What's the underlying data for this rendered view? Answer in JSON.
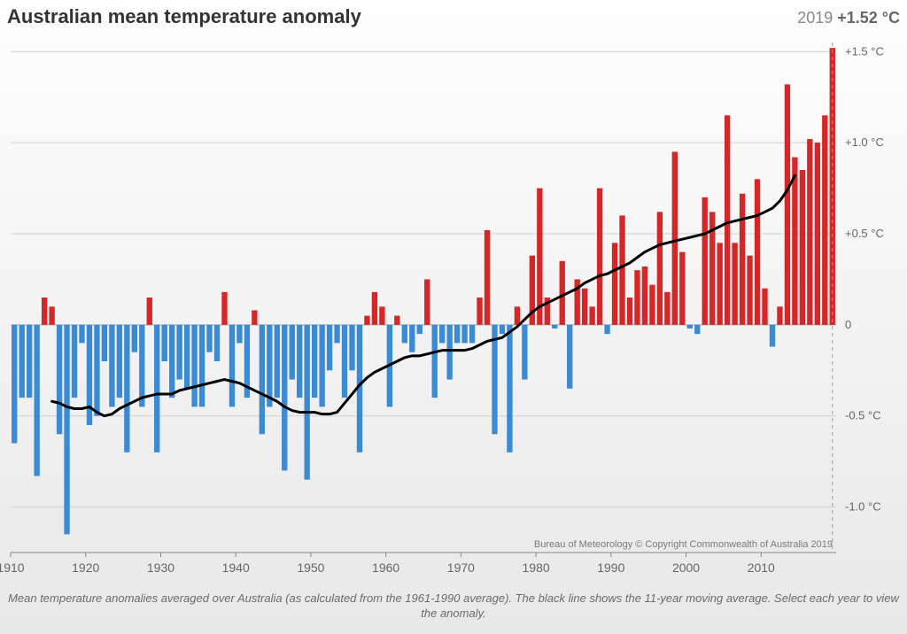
{
  "title": "Australian mean temperature anomaly",
  "readout": {
    "year": "2019",
    "value": "+1.52 °C"
  },
  "caption": "Mean temperature anomalies averaged over Australia (as calculated from the 1961-1990 average). The black line shows the 11-year moving average. Select each year to view the anomaly.",
  "credit": "Bureau of Meteorology © Copyright Commonwealth of Australia 2019",
  "chart": {
    "type": "bar+line",
    "x_start": 1910,
    "x_end": 2019,
    "xticks": [
      1910,
      1920,
      1930,
      1940,
      1950,
      1960,
      1970,
      1980,
      1990,
      2000,
      2010
    ],
    "ylim": [
      -1.25,
      1.55
    ],
    "yticks": [
      -1.0,
      -0.5,
      0,
      0.5,
      1.0,
      1.5
    ],
    "ytick_labels": [
      "-1.0 °C",
      "-0.5 °C",
      "0",
      "+0.5 °C",
      "+1.0 °C",
      "+1.5 °C"
    ],
    "xtick_fontsize": 14,
    "ytick_fontsize": 13,
    "title_fontsize": 22,
    "pos_color": "#d62728",
    "neg_color": "#3b8bd4",
    "line_color": "#000000",
    "line_width": 3,
    "grid_color": "#d0d0d0",
    "axis_color": "#888888",
    "background": "linear-gradient(#fefefe,#e8e8e8)",
    "bar_gap_ratio": 0.25,
    "values": [
      {
        "year": 1910,
        "v": -0.65
      },
      {
        "year": 1911,
        "v": -0.4
      },
      {
        "year": 1912,
        "v": -0.4
      },
      {
        "year": 1913,
        "v": -0.83
      },
      {
        "year": 1914,
        "v": 0.15
      },
      {
        "year": 1915,
        "v": 0.1
      },
      {
        "year": 1916,
        "v": -0.6
      },
      {
        "year": 1917,
        "v": -1.15
      },
      {
        "year": 1918,
        "v": -0.4
      },
      {
        "year": 1919,
        "v": -0.1
      },
      {
        "year": 1920,
        "v": -0.55
      },
      {
        "year": 1921,
        "v": -0.5
      },
      {
        "year": 1922,
        "v": -0.2
      },
      {
        "year": 1923,
        "v": -0.45
      },
      {
        "year": 1924,
        "v": -0.4
      },
      {
        "year": 1925,
        "v": -0.7
      },
      {
        "year": 1926,
        "v": -0.15
      },
      {
        "year": 1927,
        "v": -0.45
      },
      {
        "year": 1928,
        "v": 0.15
      },
      {
        "year": 1929,
        "v": -0.7
      },
      {
        "year": 1930,
        "v": -0.2
      },
      {
        "year": 1931,
        "v": -0.4
      },
      {
        "year": 1932,
        "v": -0.3
      },
      {
        "year": 1933,
        "v": -0.35
      },
      {
        "year": 1934,
        "v": -0.45
      },
      {
        "year": 1935,
        "v": -0.45
      },
      {
        "year": 1936,
        "v": -0.15
      },
      {
        "year": 1937,
        "v": -0.2
      },
      {
        "year": 1938,
        "v": 0.18
      },
      {
        "year": 1939,
        "v": -0.45
      },
      {
        "year": 1940,
        "v": -0.1
      },
      {
        "year": 1941,
        "v": -0.4
      },
      {
        "year": 1942,
        "v": 0.08
      },
      {
        "year": 1943,
        "v": -0.6
      },
      {
        "year": 1944,
        "v": -0.45
      },
      {
        "year": 1945,
        "v": -0.4
      },
      {
        "year": 1946,
        "v": -0.8
      },
      {
        "year": 1947,
        "v": -0.3
      },
      {
        "year": 1948,
        "v": -0.4
      },
      {
        "year": 1949,
        "v": -0.85
      },
      {
        "year": 1950,
        "v": -0.4
      },
      {
        "year": 1951,
        "v": -0.45
      },
      {
        "year": 1952,
        "v": -0.25
      },
      {
        "year": 1953,
        "v": -0.1
      },
      {
        "year": 1954,
        "v": -0.4
      },
      {
        "year": 1955,
        "v": -0.25
      },
      {
        "year": 1956,
        "v": -0.7
      },
      {
        "year": 1957,
        "v": 0.05
      },
      {
        "year": 1958,
        "v": 0.18
      },
      {
        "year": 1959,
        "v": 0.1
      },
      {
        "year": 1960,
        "v": -0.45
      },
      {
        "year": 1961,
        "v": 0.05
      },
      {
        "year": 1962,
        "v": -0.1
      },
      {
        "year": 1963,
        "v": -0.15
      },
      {
        "year": 1964,
        "v": -0.05
      },
      {
        "year": 1965,
        "v": 0.25
      },
      {
        "year": 1966,
        "v": -0.4
      },
      {
        "year": 1967,
        "v": -0.1
      },
      {
        "year": 1968,
        "v": -0.3
      },
      {
        "year": 1969,
        "v": -0.1
      },
      {
        "year": 1970,
        "v": -0.1
      },
      {
        "year": 1971,
        "v": -0.1
      },
      {
        "year": 1972,
        "v": 0.15
      },
      {
        "year": 1973,
        "v": 0.52
      },
      {
        "year": 1974,
        "v": -0.6
      },
      {
        "year": 1975,
        "v": -0.05
      },
      {
        "year": 1976,
        "v": -0.7
      },
      {
        "year": 1977,
        "v": 0.1
      },
      {
        "year": 1978,
        "v": -0.3
      },
      {
        "year": 1979,
        "v": 0.38
      },
      {
        "year": 1980,
        "v": 0.75
      },
      {
        "year": 1981,
        "v": 0.15
      },
      {
        "year": 1982,
        "v": -0.02
      },
      {
        "year": 1983,
        "v": 0.35
      },
      {
        "year": 1984,
        "v": -0.35
      },
      {
        "year": 1985,
        "v": 0.25
      },
      {
        "year": 1986,
        "v": 0.2
      },
      {
        "year": 1987,
        "v": 0.1
      },
      {
        "year": 1988,
        "v": 0.75
      },
      {
        "year": 1989,
        "v": -0.05
      },
      {
        "year": 1990,
        "v": 0.45
      },
      {
        "year": 1991,
        "v": 0.6
      },
      {
        "year": 1992,
        "v": 0.15
      },
      {
        "year": 1993,
        "v": 0.3
      },
      {
        "year": 1994,
        "v": 0.32
      },
      {
        "year": 1995,
        "v": 0.22
      },
      {
        "year": 1996,
        "v": 0.62
      },
      {
        "year": 1997,
        "v": 0.18
      },
      {
        "year": 1998,
        "v": 0.95
      },
      {
        "year": 1999,
        "v": 0.4
      },
      {
        "year": 2000,
        "v": -0.02
      },
      {
        "year": 2001,
        "v": -0.05
      },
      {
        "year": 2002,
        "v": 0.7
      },
      {
        "year": 2003,
        "v": 0.62
      },
      {
        "year": 2004,
        "v": 0.45
      },
      {
        "year": 2005,
        "v": 1.15
      },
      {
        "year": 2006,
        "v": 0.45
      },
      {
        "year": 2007,
        "v": 0.72
      },
      {
        "year": 2008,
        "v": 0.38
      },
      {
        "year": 2009,
        "v": 0.8
      },
      {
        "year": 2010,
        "v": 0.2
      },
      {
        "year": 2011,
        "v": -0.12
      },
      {
        "year": 2012,
        "v": 0.1
      },
      {
        "year": 2013,
        "v": 1.32
      },
      {
        "year": 2014,
        "v": 0.92
      },
      {
        "year": 2015,
        "v": 0.85
      },
      {
        "year": 2016,
        "v": 1.02
      },
      {
        "year": 2017,
        "v": 1.0
      },
      {
        "year": 2018,
        "v": 1.15
      },
      {
        "year": 2019,
        "v": 1.52
      }
    ],
    "moving_avg": [
      {
        "year": 1915,
        "v": -0.42
      },
      {
        "year": 1916,
        "v": -0.43
      },
      {
        "year": 1917,
        "v": -0.45
      },
      {
        "year": 1918,
        "v": -0.46
      },
      {
        "year": 1919,
        "v": -0.46
      },
      {
        "year": 1920,
        "v": -0.45
      },
      {
        "year": 1921,
        "v": -0.48
      },
      {
        "year": 1922,
        "v": -0.5
      },
      {
        "year": 1923,
        "v": -0.49
      },
      {
        "year": 1924,
        "v": -0.46
      },
      {
        "year": 1925,
        "v": -0.44
      },
      {
        "year": 1926,
        "v": -0.42
      },
      {
        "year": 1927,
        "v": -0.4
      },
      {
        "year": 1928,
        "v": -0.39
      },
      {
        "year": 1929,
        "v": -0.38
      },
      {
        "year": 1930,
        "v": -0.38
      },
      {
        "year": 1931,
        "v": -0.38
      },
      {
        "year": 1932,
        "v": -0.36
      },
      {
        "year": 1933,
        "v": -0.35
      },
      {
        "year": 1934,
        "v": -0.34
      },
      {
        "year": 1935,
        "v": -0.33
      },
      {
        "year": 1936,
        "v": -0.32
      },
      {
        "year": 1937,
        "v": -0.31
      },
      {
        "year": 1938,
        "v": -0.3
      },
      {
        "year": 1939,
        "v": -0.31
      },
      {
        "year": 1940,
        "v": -0.32
      },
      {
        "year": 1941,
        "v": -0.34
      },
      {
        "year": 1942,
        "v": -0.36
      },
      {
        "year": 1943,
        "v": -0.38
      },
      {
        "year": 1944,
        "v": -0.4
      },
      {
        "year": 1945,
        "v": -0.42
      },
      {
        "year": 1946,
        "v": -0.45
      },
      {
        "year": 1947,
        "v": -0.47
      },
      {
        "year": 1948,
        "v": -0.48
      },
      {
        "year": 1949,
        "v": -0.48
      },
      {
        "year": 1950,
        "v": -0.48
      },
      {
        "year": 1951,
        "v": -0.49
      },
      {
        "year": 1952,
        "v": -0.49
      },
      {
        "year": 1953,
        "v": -0.48
      },
      {
        "year": 1954,
        "v": -0.43
      },
      {
        "year": 1955,
        "v": -0.38
      },
      {
        "year": 1956,
        "v": -0.33
      },
      {
        "year": 1957,
        "v": -0.29
      },
      {
        "year": 1958,
        "v": -0.26
      },
      {
        "year": 1959,
        "v": -0.24
      },
      {
        "year": 1960,
        "v": -0.22
      },
      {
        "year": 1961,
        "v": -0.2
      },
      {
        "year": 1962,
        "v": -0.18
      },
      {
        "year": 1963,
        "v": -0.17
      },
      {
        "year": 1964,
        "v": -0.17
      },
      {
        "year": 1965,
        "v": -0.16
      },
      {
        "year": 1966,
        "v": -0.15
      },
      {
        "year": 1967,
        "v": -0.14
      },
      {
        "year": 1968,
        "v": -0.14
      },
      {
        "year": 1969,
        "v": -0.14
      },
      {
        "year": 1970,
        "v": -0.14
      },
      {
        "year": 1971,
        "v": -0.13
      },
      {
        "year": 1972,
        "v": -0.11
      },
      {
        "year": 1973,
        "v": -0.09
      },
      {
        "year": 1974,
        "v": -0.08
      },
      {
        "year": 1975,
        "v": -0.07
      },
      {
        "year": 1976,
        "v": -0.04
      },
      {
        "year": 1977,
        "v": -0.01
      },
      {
        "year": 1978,
        "v": 0.03
      },
      {
        "year": 1979,
        "v": 0.07
      },
      {
        "year": 1980,
        "v": 0.1
      },
      {
        "year": 1981,
        "v": 0.12
      },
      {
        "year": 1982,
        "v": 0.14
      },
      {
        "year": 1983,
        "v": 0.16
      },
      {
        "year": 1984,
        "v": 0.18
      },
      {
        "year": 1985,
        "v": 0.2
      },
      {
        "year": 1986,
        "v": 0.23
      },
      {
        "year": 1987,
        "v": 0.25
      },
      {
        "year": 1988,
        "v": 0.27
      },
      {
        "year": 1989,
        "v": 0.28
      },
      {
        "year": 1990,
        "v": 0.3
      },
      {
        "year": 1991,
        "v": 0.32
      },
      {
        "year": 1992,
        "v": 0.34
      },
      {
        "year": 1993,
        "v": 0.37
      },
      {
        "year": 1994,
        "v": 0.4
      },
      {
        "year": 1995,
        "v": 0.42
      },
      {
        "year": 1996,
        "v": 0.44
      },
      {
        "year": 1997,
        "v": 0.45
      },
      {
        "year": 1998,
        "v": 0.46
      },
      {
        "year": 1999,
        "v": 0.47
      },
      {
        "year": 2000,
        "v": 0.48
      },
      {
        "year": 2001,
        "v": 0.49
      },
      {
        "year": 2002,
        "v": 0.5
      },
      {
        "year": 2003,
        "v": 0.52
      },
      {
        "year": 2004,
        "v": 0.54
      },
      {
        "year": 2005,
        "v": 0.56
      },
      {
        "year": 2006,
        "v": 0.57
      },
      {
        "year": 2007,
        "v": 0.58
      },
      {
        "year": 2008,
        "v": 0.59
      },
      {
        "year": 2009,
        "v": 0.6
      },
      {
        "year": 2010,
        "v": 0.62
      },
      {
        "year": 2011,
        "v": 0.64
      },
      {
        "year": 2012,
        "v": 0.68
      },
      {
        "year": 2013,
        "v": 0.74
      },
      {
        "year": 2014,
        "v": 0.82
      }
    ]
  }
}
